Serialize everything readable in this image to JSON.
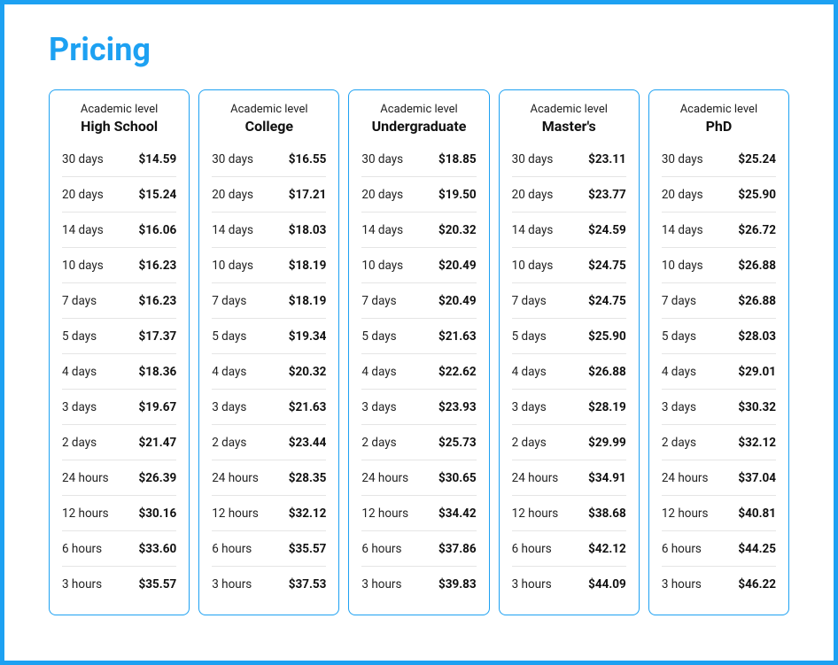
{
  "title": "Pricing",
  "header_label": "Academic level",
  "columns": [
    {
      "name": "High School",
      "rows": [
        {
          "deadline": "30 days",
          "price": "$14.59"
        },
        {
          "deadline": "20 days",
          "price": "$15.24"
        },
        {
          "deadline": "14 days",
          "price": "$16.06"
        },
        {
          "deadline": "10 days",
          "price": "$16.23"
        },
        {
          "deadline": "7 days",
          "price": "$16.23"
        },
        {
          "deadline": "5 days",
          "price": "$17.37"
        },
        {
          "deadline": "4 days",
          "price": "$18.36"
        },
        {
          "deadline": "3 days",
          "price": "$19.67"
        },
        {
          "deadline": "2 days",
          "price": "$21.47"
        },
        {
          "deadline": "24 hours",
          "price": "$26.39"
        },
        {
          "deadline": "12 hours",
          "price": "$30.16"
        },
        {
          "deadline": "6 hours",
          "price": "$33.60"
        },
        {
          "deadline": "3 hours",
          "price": "$35.57"
        }
      ]
    },
    {
      "name": "College",
      "rows": [
        {
          "deadline": "30 days",
          "price": "$16.55"
        },
        {
          "deadline": "20 days",
          "price": "$17.21"
        },
        {
          "deadline": "14 days",
          "price": "$18.03"
        },
        {
          "deadline": "10 days",
          "price": "$18.19"
        },
        {
          "deadline": "7 days",
          "price": "$18.19"
        },
        {
          "deadline": "5 days",
          "price": "$19.34"
        },
        {
          "deadline": "4 days",
          "price": "$20.32"
        },
        {
          "deadline": "3 days",
          "price": "$21.63"
        },
        {
          "deadline": "2 days",
          "price": "$23.44"
        },
        {
          "deadline": "24 hours",
          "price": "$28.35"
        },
        {
          "deadline": "12 hours",
          "price": "$32.12"
        },
        {
          "deadline": "6 hours",
          "price": "$35.57"
        },
        {
          "deadline": "3 hours",
          "price": "$37.53"
        }
      ]
    },
    {
      "name": "Undergraduate",
      "rows": [
        {
          "deadline": "30 days",
          "price": "$18.85"
        },
        {
          "deadline": "20 days",
          "price": "$19.50"
        },
        {
          "deadline": "14 days",
          "price": "$20.32"
        },
        {
          "deadline": "10 days",
          "price": "$20.49"
        },
        {
          "deadline": "7 days",
          "price": "$20.49"
        },
        {
          "deadline": "5 days",
          "price": "$21.63"
        },
        {
          "deadline": "4 days",
          "price": "$22.62"
        },
        {
          "deadline": "3 days",
          "price": "$23.93"
        },
        {
          "deadline": "2 days",
          "price": "$25.73"
        },
        {
          "deadline": "24 hours",
          "price": "$30.65"
        },
        {
          "deadline": "12 hours",
          "price": "$34.42"
        },
        {
          "deadline": "6 hours",
          "price": "$37.86"
        },
        {
          "deadline": "3 hours",
          "price": "$39.83"
        }
      ]
    },
    {
      "name": "Master's",
      "rows": [
        {
          "deadline": "30 days",
          "price": "$23.11"
        },
        {
          "deadline": "20 days",
          "price": "$23.77"
        },
        {
          "deadline": "14 days",
          "price": "$24.59"
        },
        {
          "deadline": "10 days",
          "price": "$24.75"
        },
        {
          "deadline": "7 days",
          "price": "$24.75"
        },
        {
          "deadline": "5 days",
          "price": "$25.90"
        },
        {
          "deadline": "4 days",
          "price": "$26.88"
        },
        {
          "deadline": "3 days",
          "price": "$28.19"
        },
        {
          "deadline": "2 days",
          "price": "$29.99"
        },
        {
          "deadline": "24 hours",
          "price": "$34.91"
        },
        {
          "deadline": "12 hours",
          "price": "$38.68"
        },
        {
          "deadline": "6 hours",
          "price": "$42.12"
        },
        {
          "deadline": "3 hours",
          "price": "$44.09"
        }
      ]
    },
    {
      "name": "PhD",
      "rows": [
        {
          "deadline": "30 days",
          "price": "$25.24"
        },
        {
          "deadline": "20 days",
          "price": "$25.90"
        },
        {
          "deadline": "14 days",
          "price": "$26.72"
        },
        {
          "deadline": "10 days",
          "price": "$26.88"
        },
        {
          "deadline": "7 days",
          "price": "$26.88"
        },
        {
          "deadline": "5 days",
          "price": "$28.03"
        },
        {
          "deadline": "4 days",
          "price": "$29.01"
        },
        {
          "deadline": "3 days",
          "price": "$30.32"
        },
        {
          "deadline": "2 days",
          "price": "$32.12"
        },
        {
          "deadline": "24 hours",
          "price": "$37.04"
        },
        {
          "deadline": "12 hours",
          "price": "$40.81"
        },
        {
          "deadline": "6 hours",
          "price": "$44.25"
        },
        {
          "deadline": "3 hours",
          "price": "$46.22"
        }
      ]
    }
  ],
  "styling": {
    "frame_border_color": "#1da1f2",
    "card_border_color": "#1da1f2",
    "row_divider_color": "#e5e5e5",
    "title_color": "#1da1f2",
    "background_color": "#ffffff",
    "title_fontsize": 36,
    "header_sub_fontsize": 13,
    "header_main_fontsize": 16,
    "cell_fontsize": 13.5,
    "card_border_radius": 8,
    "frame_border_width": 5
  }
}
